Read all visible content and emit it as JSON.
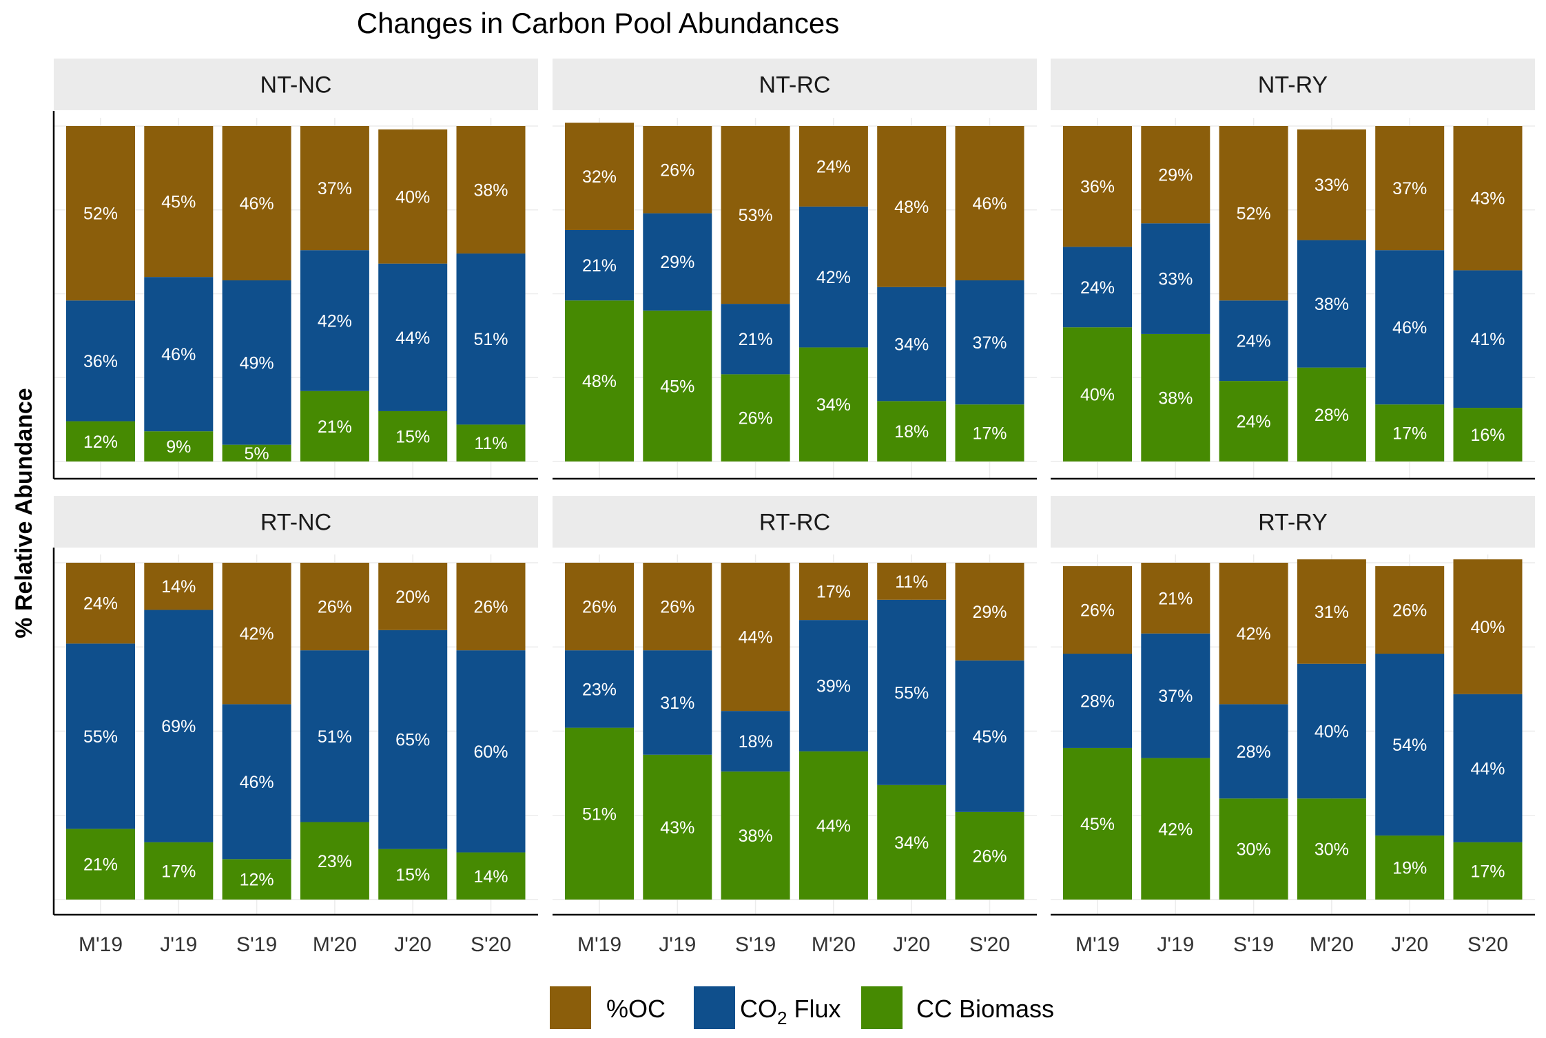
{
  "chart_data": {
    "type": "bar",
    "stacked": true,
    "title": "Changes in Carbon Pool Abundances",
    "ylabel": "% Relative Abundance",
    "xlabel": "",
    "ylim": [
      0,
      100
    ],
    "categories": [
      "M'19",
      "J'19",
      "S'19",
      "M'20",
      "J'20",
      "S'20"
    ],
    "series_order_bottom_to_top": [
      "CC Biomass",
      "CO2 Flux",
      "%OC"
    ],
    "colors": {
      "%OC": "#8B5E0B",
      "CO2 Flux": "#0F4F8C",
      "CC Biomass": "#468A02"
    },
    "legend": {
      "position": "bottom",
      "items": [
        {
          "key": "%OC",
          "label": "%OC"
        },
        {
          "key": "CO2 Flux",
          "label_main": "CO",
          "label_sub": "2",
          "label_rest": " Flux"
        },
        {
          "key": "CC Biomass",
          "label": "CC Biomass"
        }
      ]
    },
    "panels": [
      {
        "name": "NT-NC",
        "series": [
          {
            "name": "CC Biomass",
            "values": [
              12,
              9,
              5,
              21,
              15,
              11
            ]
          },
          {
            "name": "CO2 Flux",
            "values": [
              36,
              46,
              49,
              42,
              44,
              51
            ]
          },
          {
            "name": "%OC",
            "values": [
              52,
              45,
              46,
              37,
              40,
              38
            ]
          }
        ]
      },
      {
        "name": "NT-RC",
        "series": [
          {
            "name": "CC Biomass",
            "values": [
              48,
              45,
              26,
              34,
              18,
              17
            ]
          },
          {
            "name": "CO2 Flux",
            "values": [
              21,
              29,
              21,
              42,
              34,
              37
            ]
          },
          {
            "name": "%OC",
            "values": [
              32,
              26,
              53,
              24,
              48,
              46
            ]
          }
        ]
      },
      {
        "name": "NT-RY",
        "series": [
          {
            "name": "CC Biomass",
            "values": [
              40,
              38,
              24,
              28,
              17,
              16
            ]
          },
          {
            "name": "CO2 Flux",
            "values": [
              24,
              33,
              24,
              38,
              46,
              41
            ]
          },
          {
            "name": "%OC",
            "values": [
              36,
              29,
              52,
              33,
              37,
              43
            ]
          }
        ]
      },
      {
        "name": "RT-NC",
        "series": [
          {
            "name": "CC Biomass",
            "values": [
              21,
              17,
              12,
              23,
              15,
              14
            ]
          },
          {
            "name": "CO2 Flux",
            "values": [
              55,
              69,
              46,
              51,
              65,
              60
            ]
          },
          {
            "name": "%OC",
            "values": [
              24,
              14,
              42,
              26,
              20,
              26
            ]
          }
        ]
      },
      {
        "name": "RT-RC",
        "series": [
          {
            "name": "CC Biomass",
            "values": [
              51,
              43,
              38,
              44,
              34,
              26
            ]
          },
          {
            "name": "CO2 Flux",
            "values": [
              23,
              31,
              18,
              39,
              55,
              45
            ]
          },
          {
            "name": "%OC",
            "values": [
              26,
              26,
              44,
              17,
              11,
              29
            ]
          }
        ]
      },
      {
        "name": "RT-RY",
        "series": [
          {
            "name": "CC Biomass",
            "values": [
              45,
              42,
              30,
              30,
              19,
              17
            ]
          },
          {
            "name": "CO2 Flux",
            "values": [
              28,
              37,
              28,
              40,
              54,
              44
            ]
          },
          {
            "name": "%OC",
            "values": [
              26,
              21,
              42,
              31,
              26,
              40
            ]
          }
        ]
      }
    ]
  }
}
